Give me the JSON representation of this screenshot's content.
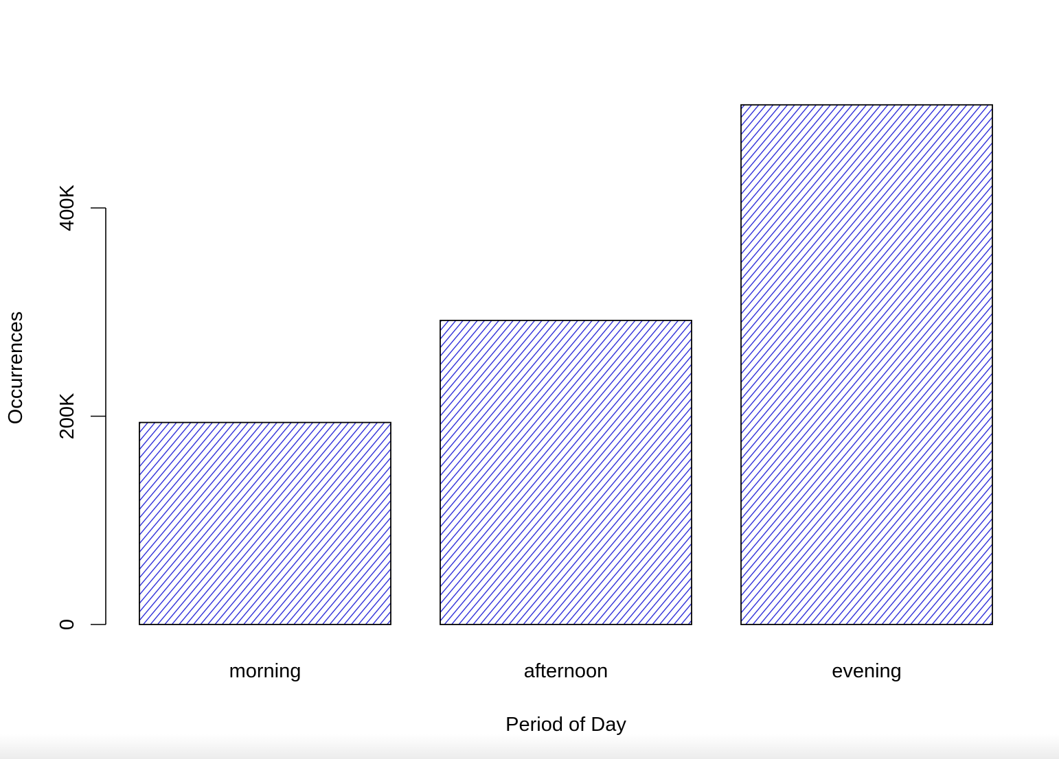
{
  "chart_data": {
    "type": "bar",
    "categories": [
      "morning",
      "afternoon",
      "evening"
    ],
    "values": [
      194000,
      292000,
      499000
    ],
    "title": "",
    "xlabel": "Period of Day",
    "ylabel": "Occurrences",
    "ylim": [
      0,
      400000
    ],
    "yticks": [
      {
        "value": 0,
        "label": "0"
      },
      {
        "value": 200000,
        "label": "200K"
      },
      {
        "value": 400000,
        "label": "400K"
      }
    ],
    "bar_fill": "hatched",
    "hatch_color": "#1f1fd6",
    "border_color": "#000000",
    "grid": false
  }
}
